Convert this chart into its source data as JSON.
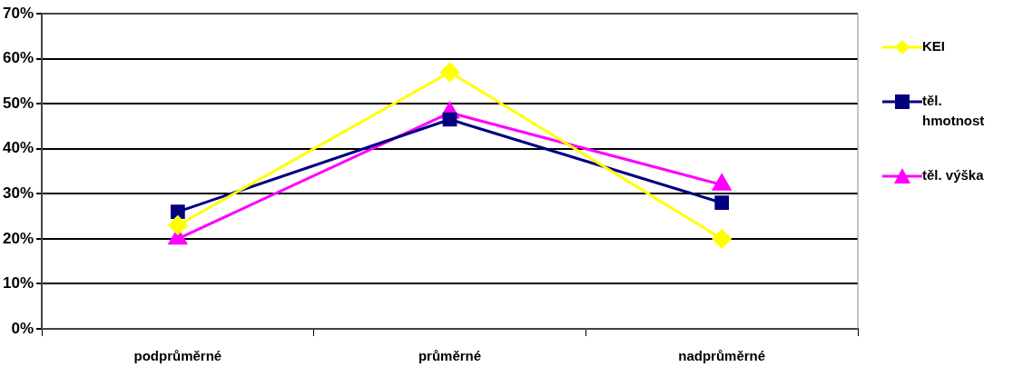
{
  "chart_data": {
    "type": "line",
    "categories": [
      "podprůměrné",
      "průměrné",
      "nadprůměrné"
    ],
    "series": [
      {
        "name": "KEI",
        "color": "#ffff00",
        "values": [
          23,
          57,
          20
        ],
        "marker": "diamond"
      },
      {
        "name": "těl. hmotnost",
        "color": "#000080",
        "values": [
          26,
          46.5,
          28
        ],
        "marker": "square"
      },
      {
        "name": "těl. výška",
        "color": "#ff00ff",
        "values": [
          20,
          48,
          32
        ],
        "marker": "triangle"
      }
    ],
    "ylim": [
      0,
      70
    ],
    "yticks": [
      {
        "value": 0,
        "label": "0%"
      },
      {
        "value": 10,
        "label": "10%"
      },
      {
        "value": 20,
        "label": "20%"
      },
      {
        "value": 30,
        "label": "30%"
      },
      {
        "value": 40,
        "label": "40%"
      },
      {
        "value": 50,
        "label": "50%"
      },
      {
        "value": 60,
        "label": "60%"
      },
      {
        "value": 70,
        "label": "70%"
      }
    ],
    "grid": "y",
    "legend": "right",
    "line_style": "solid"
  }
}
